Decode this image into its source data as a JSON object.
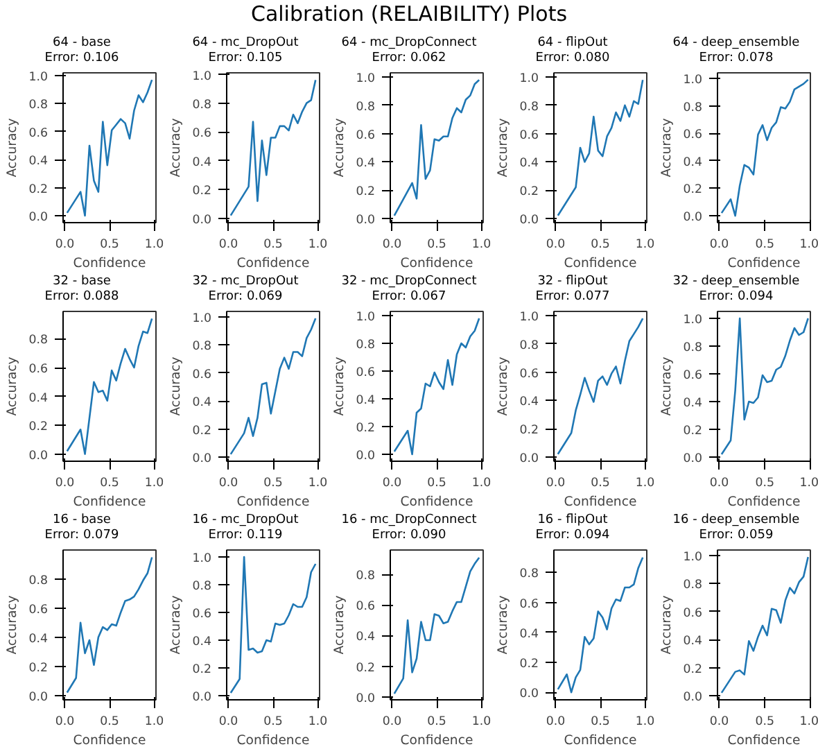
{
  "chart_data": [
    {
      "type": "other",
      "title": "Calibration (RELAIBILITY) Plots"
    },
    {
      "type": "line",
      "title": "64 - base",
      "subtitle": "Error: 0.106",
      "xlabel": "Confidence",
      "ylabel": "Accuracy",
      "xlim": [
        -0.02,
        1.02
      ],
      "ylim": [
        -0.05,
        1.02
      ],
      "xticks": [
        {
          "value": 0,
          "label": "0.0"
        },
        {
          "value": 0.5,
          "label": "0.5"
        },
        {
          "value": 1,
          "label": "1.0"
        }
      ],
      "yticks": [
        {
          "value": 0,
          "label": "0.0"
        },
        {
          "value": 0.2,
          "label": "0.2"
        },
        {
          "value": 0.4,
          "label": "0.4"
        },
        {
          "value": 0.6,
          "label": "0.6"
        },
        {
          "value": 0.8,
          "label": "0.8"
        },
        {
          "value": 1,
          "label": "1.0"
        }
      ],
      "x": [
        0.025,
        0.175,
        0.225,
        0.275,
        0.325,
        0.375,
        0.425,
        0.475,
        0.525,
        0.575,
        0.625,
        0.675,
        0.725,
        0.775,
        0.825,
        0.875,
        0.925,
        0.975
      ],
      "values": [
        0.02,
        0.17,
        0.0,
        0.5,
        0.25,
        0.17,
        0.67,
        0.36,
        0.61,
        0.65,
        0.69,
        0.66,
        0.55,
        0.75,
        0.86,
        0.81,
        0.88,
        0.97
      ],
      "color": "#1f77b4"
    },
    {
      "type": "line",
      "title": "64 - mc_DropOut",
      "subtitle": "Error: 0.105",
      "xlabel": "Confidence",
      "ylabel": "Accuracy",
      "xlim": [
        -0.02,
        1.02
      ],
      "ylim": [
        -0.03,
        1.01
      ],
      "xticks": [
        {
          "value": 0,
          "label": "0.0"
        },
        {
          "value": 0.5,
          "label": "0.5"
        },
        {
          "value": 1,
          "label": "1.0"
        }
      ],
      "yticks": [
        {
          "value": 0,
          "label": "0.0"
        },
        {
          "value": 0.2,
          "label": "0.2"
        },
        {
          "value": 0.4,
          "label": "0.4"
        },
        {
          "value": 0.6,
          "label": "0.6"
        },
        {
          "value": 0.8,
          "label": "0.8"
        },
        {
          "value": 1,
          "label": "1.0"
        }
      ],
      "x": [
        0.025,
        0.225,
        0.275,
        0.325,
        0.375,
        0.425,
        0.475,
        0.525,
        0.575,
        0.625,
        0.675,
        0.725,
        0.775,
        0.825,
        0.875,
        0.925,
        0.975
      ],
      "values": [
        0.02,
        0.22,
        0.67,
        0.12,
        0.54,
        0.3,
        0.56,
        0.56,
        0.64,
        0.64,
        0.61,
        0.72,
        0.66,
        0.74,
        0.8,
        0.82,
        0.96
      ],
      "color": "#1f77b4"
    },
    {
      "type": "line",
      "title": "64 - mc_DropConnect",
      "subtitle": "Error: 0.062",
      "xlabel": "Confidence",
      "ylabel": "Accuracy",
      "xlim": [
        -0.02,
        1.02
      ],
      "ylim": [
        -0.03,
        1.03
      ],
      "xticks": [
        {
          "value": 0,
          "label": "0.0"
        },
        {
          "value": 0.5,
          "label": "0.5"
        },
        {
          "value": 1,
          "label": "1.0"
        }
      ],
      "yticks": [
        {
          "value": 0,
          "label": "0.0"
        },
        {
          "value": 0.2,
          "label": "0.2"
        },
        {
          "value": 0.4,
          "label": "0.4"
        },
        {
          "value": 0.6,
          "label": "0.6"
        },
        {
          "value": 0.8,
          "label": "0.8"
        },
        {
          "value": 1,
          "label": "1.0"
        }
      ],
      "x": [
        0.025,
        0.225,
        0.275,
        0.325,
        0.375,
        0.425,
        0.475,
        0.525,
        0.575,
        0.625,
        0.675,
        0.725,
        0.775,
        0.825,
        0.875,
        0.925,
        0.975
      ],
      "values": [
        0.02,
        0.25,
        0.14,
        0.66,
        0.28,
        0.34,
        0.56,
        0.55,
        0.58,
        0.58,
        0.71,
        0.78,
        0.75,
        0.84,
        0.87,
        0.95,
        0.98
      ],
      "color": "#1f77b4"
    },
    {
      "type": "line",
      "title": "64 - flipOut",
      "subtitle": "Error: 0.080",
      "xlabel": "Confidence",
      "ylabel": "Accuracy",
      "xlim": [
        -0.02,
        1.02
      ],
      "ylim": [
        -0.03,
        1.03
      ],
      "xticks": [
        {
          "value": 0,
          "label": "0.0"
        },
        {
          "value": 0.5,
          "label": "0.5"
        },
        {
          "value": 1,
          "label": "1.0"
        }
      ],
      "yticks": [
        {
          "value": 0,
          "label": "0.0"
        },
        {
          "value": 0.2,
          "label": "0.2"
        },
        {
          "value": 0.4,
          "label": "0.4"
        },
        {
          "value": 0.6,
          "label": "0.6"
        },
        {
          "value": 0.8,
          "label": "0.8"
        },
        {
          "value": 1,
          "label": "1.0"
        }
      ],
      "x": [
        0.025,
        0.225,
        0.275,
        0.325,
        0.375,
        0.425,
        0.475,
        0.525,
        0.575,
        0.625,
        0.675,
        0.725,
        0.775,
        0.825,
        0.875,
        0.925,
        0.975
      ],
      "values": [
        0.02,
        0.22,
        0.5,
        0.4,
        0.46,
        0.72,
        0.48,
        0.44,
        0.58,
        0.64,
        0.75,
        0.69,
        0.8,
        0.72,
        0.83,
        0.81,
        0.98
      ],
      "color": "#1f77b4"
    },
    {
      "type": "line",
      "title": "64 - deep_ensemble",
      "subtitle": "Error: 0.078",
      "xlabel": "Confidence",
      "ylabel": "Accuracy",
      "xlim": [
        -0.02,
        1.0
      ],
      "ylim": [
        -0.05,
        1.04
      ],
      "xticks": [
        {
          "value": 0,
          "label": "0.0"
        },
        {
          "value": 0.5,
          "label": "0.5"
        },
        {
          "value": 1,
          "label": "1.0"
        }
      ],
      "yticks": [
        {
          "value": 0,
          "label": "0.0"
        },
        {
          "value": 0.2,
          "label": "0.2"
        },
        {
          "value": 0.4,
          "label": "0.4"
        },
        {
          "value": 0.6,
          "label": "0.6"
        },
        {
          "value": 0.8,
          "label": "0.8"
        },
        {
          "value": 1,
          "label": "1.0"
        }
      ],
      "x": [
        0.025,
        0.125,
        0.175,
        0.225,
        0.275,
        0.325,
        0.375,
        0.425,
        0.475,
        0.525,
        0.575,
        0.625,
        0.675,
        0.725,
        0.775,
        0.825,
        0.875,
        0.925,
        0.975
      ],
      "values": [
        0.02,
        0.12,
        0.0,
        0.22,
        0.37,
        0.35,
        0.3,
        0.59,
        0.66,
        0.55,
        0.64,
        0.68,
        0.79,
        0.78,
        0.83,
        0.92,
        0.94,
        0.96,
        0.99
      ],
      "color": "#1f77b4"
    },
    {
      "type": "line",
      "title": "32 - base",
      "subtitle": "Error: 0.088",
      "xlabel": "Confidence",
      "ylabel": "Accuracy",
      "xlim": [
        -0.02,
        1.02
      ],
      "ylim": [
        -0.05,
        0.99
      ],
      "xticks": [
        {
          "value": 0,
          "label": "0.0"
        },
        {
          "value": 0.5,
          "label": "0.5"
        },
        {
          "value": 1,
          "label": "1.0"
        }
      ],
      "yticks": [
        {
          "value": 0,
          "label": "0.0"
        },
        {
          "value": 0.2,
          "label": "0.2"
        },
        {
          "value": 0.4,
          "label": "0.4"
        },
        {
          "value": 0.6,
          "label": "0.6"
        },
        {
          "value": 0.8,
          "label": "0.8"
        }
      ],
      "x": [
        0.025,
        0.175,
        0.225,
        0.325,
        0.375,
        0.425,
        0.475,
        0.525,
        0.575,
        0.625,
        0.675,
        0.725,
        0.775,
        0.825,
        0.875,
        0.925,
        0.975
      ],
      "values": [
        0.02,
        0.17,
        0.0,
        0.5,
        0.43,
        0.44,
        0.37,
        0.58,
        0.51,
        0.63,
        0.73,
        0.66,
        0.6,
        0.75,
        0.85,
        0.84,
        0.94
      ],
      "color": "#1f77b4"
    },
    {
      "type": "line",
      "title": "32 - mc_DropOut",
      "subtitle": "Error: 0.069",
      "xlabel": "Confidence",
      "ylabel": "Accuracy",
      "xlim": [
        -0.02,
        1.02
      ],
      "ylim": [
        -0.03,
        1.04
      ],
      "xticks": [
        {
          "value": 0,
          "label": "0.0"
        },
        {
          "value": 0.5,
          "label": "0.5"
        },
        {
          "value": 1,
          "label": "1.0"
        }
      ],
      "yticks": [
        {
          "value": 0,
          "label": "0.0"
        },
        {
          "value": 0.2,
          "label": "0.2"
        },
        {
          "value": 0.4,
          "label": "0.4"
        },
        {
          "value": 0.6,
          "label": "0.6"
        },
        {
          "value": 0.8,
          "label": "0.8"
        },
        {
          "value": 1,
          "label": "1.0"
        }
      ],
      "x": [
        0.025,
        0.175,
        0.225,
        0.275,
        0.325,
        0.375,
        0.425,
        0.475,
        0.525,
        0.575,
        0.625,
        0.675,
        0.725,
        0.775,
        0.825,
        0.875,
        0.925,
        0.975
      ],
      "values": [
        0.02,
        0.17,
        0.28,
        0.15,
        0.28,
        0.52,
        0.53,
        0.31,
        0.47,
        0.63,
        0.71,
        0.63,
        0.75,
        0.75,
        0.72,
        0.85,
        0.91,
        0.99
      ],
      "color": "#1f77b4"
    },
    {
      "type": "line",
      "title": "32 - mc_DropConnect",
      "subtitle": "Error: 0.067",
      "xlabel": "Confidence",
      "ylabel": "Accuracy",
      "xlim": [
        -0.02,
        1.02
      ],
      "ylim": [
        -0.05,
        1.03
      ],
      "xticks": [
        {
          "value": 0,
          "label": "0.0"
        },
        {
          "value": 0.5,
          "label": "0.5"
        },
        {
          "value": 1,
          "label": "1.0"
        }
      ],
      "yticks": [
        {
          "value": 0,
          "label": "0.0"
        },
        {
          "value": 0.2,
          "label": "0.2"
        },
        {
          "value": 0.4,
          "label": "0.4"
        },
        {
          "value": 0.6,
          "label": "0.6"
        },
        {
          "value": 0.8,
          "label": "0.8"
        },
        {
          "value": 1,
          "label": "1.0"
        }
      ],
      "x": [
        0.025,
        0.175,
        0.225,
        0.275,
        0.325,
        0.375,
        0.425,
        0.475,
        0.525,
        0.575,
        0.625,
        0.675,
        0.725,
        0.775,
        0.825,
        0.875,
        0.925,
        0.975
      ],
      "values": [
        0.02,
        0.17,
        0.0,
        0.3,
        0.33,
        0.51,
        0.49,
        0.59,
        0.52,
        0.47,
        0.68,
        0.5,
        0.72,
        0.8,
        0.77,
        0.85,
        0.89,
        0.98
      ],
      "color": "#1f77b4"
    },
    {
      "type": "line",
      "title": "32 - flipOut",
      "subtitle": "Error: 0.077",
      "xlabel": "Confidence",
      "ylabel": "Accuracy",
      "xlim": [
        -0.02,
        1.02
      ],
      "ylim": [
        -0.03,
        1.03
      ],
      "xticks": [
        {
          "value": 0,
          "label": "0.0"
        },
        {
          "value": 0.5,
          "label": "0.5"
        },
        {
          "value": 1,
          "label": "1.0"
        }
      ],
      "yticks": [
        {
          "value": 0,
          "label": "0.0"
        },
        {
          "value": 0.2,
          "label": "0.2"
        },
        {
          "value": 0.4,
          "label": "0.4"
        },
        {
          "value": 0.6,
          "label": "0.6"
        },
        {
          "value": 0.8,
          "label": "0.8"
        },
        {
          "value": 1,
          "label": "1.0"
        }
      ],
      "x": [
        0.025,
        0.175,
        0.225,
        0.275,
        0.325,
        0.375,
        0.425,
        0.475,
        0.525,
        0.575,
        0.625,
        0.675,
        0.725,
        0.775,
        0.825,
        0.875,
        0.925,
        0.975
      ],
      "values": [
        0.02,
        0.17,
        0.33,
        0.44,
        0.56,
        0.47,
        0.39,
        0.54,
        0.57,
        0.51,
        0.59,
        0.64,
        0.52,
        0.68,
        0.82,
        0.87,
        0.92,
        0.98
      ],
      "color": "#1f77b4"
    },
    {
      "type": "line",
      "title": "32 - deep_ensemble",
      "subtitle": "Error: 0.094",
      "xlabel": "Confidence",
      "ylabel": "Accuracy",
      "xlim": [
        -0.02,
        1.0
      ],
      "ylim": [
        -0.03,
        1.05
      ],
      "xticks": [
        {
          "value": 0,
          "label": "0.0"
        },
        {
          "value": 0.5,
          "label": "0.5"
        },
        {
          "value": 1,
          "label": "1.0"
        }
      ],
      "yticks": [
        {
          "value": 0,
          "label": "0.0"
        },
        {
          "value": 0.2,
          "label": "0.2"
        },
        {
          "value": 0.4,
          "label": "0.4"
        },
        {
          "value": 0.6,
          "label": "0.6"
        },
        {
          "value": 0.8,
          "label": "0.8"
        },
        {
          "value": 1,
          "label": "1.0"
        }
      ],
      "x": [
        0.025,
        0.125,
        0.175,
        0.225,
        0.275,
        0.325,
        0.375,
        0.425,
        0.475,
        0.525,
        0.575,
        0.625,
        0.675,
        0.725,
        0.775,
        0.825,
        0.875,
        0.925,
        0.975
      ],
      "values": [
        0.02,
        0.12,
        0.48,
        1.0,
        0.27,
        0.4,
        0.39,
        0.43,
        0.59,
        0.54,
        0.55,
        0.63,
        0.65,
        0.73,
        0.84,
        0.93,
        0.88,
        0.9,
        1.0
      ],
      "color": "#1f77b4"
    },
    {
      "type": "line",
      "title": "16 - base",
      "subtitle": "Error: 0.079",
      "xlabel": "Confidence",
      "ylabel": "Accuracy",
      "xlim": [
        -0.02,
        1.02
      ],
      "ylim": [
        -0.03,
        1.0
      ],
      "xticks": [
        {
          "value": 0,
          "label": "0.0"
        },
        {
          "value": 0.5,
          "label": "0.5"
        },
        {
          "value": 1,
          "label": "1.0"
        }
      ],
      "yticks": [
        {
          "value": 0,
          "label": "0.0"
        },
        {
          "value": 0.2,
          "label": "0.2"
        },
        {
          "value": 0.4,
          "label": "0.4"
        },
        {
          "value": 0.6,
          "label": "0.6"
        },
        {
          "value": 0.8,
          "label": "0.8"
        }
      ],
      "x": [
        0.025,
        0.125,
        0.175,
        0.225,
        0.275,
        0.325,
        0.375,
        0.425,
        0.475,
        0.525,
        0.575,
        0.625,
        0.675,
        0.725,
        0.775,
        0.825,
        0.875,
        0.925,
        0.975
      ],
      "values": [
        0.02,
        0.12,
        0.5,
        0.29,
        0.38,
        0.21,
        0.4,
        0.47,
        0.45,
        0.49,
        0.48,
        0.57,
        0.65,
        0.66,
        0.68,
        0.73,
        0.79,
        0.84,
        0.95
      ],
      "color": "#1f77b4"
    },
    {
      "type": "line",
      "title": "16 - mc_DropOut",
      "subtitle": "Error: 0.119",
      "xlabel": "Confidence",
      "ylabel": "Accuracy",
      "xlim": [
        -0.02,
        1.02
      ],
      "ylim": [
        -0.03,
        1.05
      ],
      "xticks": [
        {
          "value": 0,
          "label": "0.0"
        },
        {
          "value": 0.5,
          "label": "0.5"
        },
        {
          "value": 1,
          "label": "1.0"
        }
      ],
      "yticks": [
        {
          "value": 0,
          "label": "0.0"
        },
        {
          "value": 0.2,
          "label": "0.2"
        },
        {
          "value": 0.4,
          "label": "0.4"
        },
        {
          "value": 0.6,
          "label": "0.6"
        },
        {
          "value": 0.8,
          "label": "0.8"
        },
        {
          "value": 1,
          "label": "1.0"
        }
      ],
      "x": [
        0.025,
        0.125,
        0.175,
        0.225,
        0.275,
        0.325,
        0.375,
        0.425,
        0.475,
        0.525,
        0.575,
        0.625,
        0.675,
        0.725,
        0.775,
        0.825,
        0.875,
        0.925,
        0.975
      ],
      "values": [
        0.02,
        0.12,
        1.0,
        0.33,
        0.34,
        0.31,
        0.32,
        0.4,
        0.39,
        0.52,
        0.51,
        0.52,
        0.58,
        0.66,
        0.64,
        0.64,
        0.71,
        0.89,
        0.95
      ],
      "color": "#1f77b4"
    },
    {
      "type": "line",
      "title": "16 - mc_DropConnect",
      "subtitle": "Error: 0.090",
      "xlabel": "Confidence",
      "ylabel": "Accuracy",
      "xlim": [
        -0.02,
        1.02
      ],
      "ylim": [
        -0.02,
        0.96
      ],
      "xticks": [
        {
          "value": 0,
          "label": "0.0"
        },
        {
          "value": 0.5,
          "label": "0.5"
        },
        {
          "value": 1,
          "label": "1.0"
        }
      ],
      "yticks": [
        {
          "value": 0,
          "label": "0.0"
        },
        {
          "value": 0.2,
          "label": "0.2"
        },
        {
          "value": 0.4,
          "label": "0.4"
        },
        {
          "value": 0.6,
          "label": "0.6"
        },
        {
          "value": 0.8,
          "label": "0.8"
        }
      ],
      "x": [
        0.025,
        0.125,
        0.175,
        0.225,
        0.275,
        0.325,
        0.375,
        0.425,
        0.475,
        0.525,
        0.575,
        0.625,
        0.675,
        0.725,
        0.775,
        0.825,
        0.875,
        0.925,
        0.975
      ],
      "values": [
        0.02,
        0.12,
        0.5,
        0.16,
        0.25,
        0.49,
        0.37,
        0.37,
        0.54,
        0.53,
        0.48,
        0.49,
        0.56,
        0.62,
        0.62,
        0.72,
        0.82,
        0.87,
        0.91
      ],
      "color": "#1f77b4"
    },
    {
      "type": "line",
      "title": "16 - flipOut",
      "subtitle": "Error: 0.094",
      "xlabel": "Confidence",
      "ylabel": "Accuracy",
      "xlim": [
        -0.02,
        1.02
      ],
      "ylim": [
        -0.05,
        0.95
      ],
      "xticks": [
        {
          "value": 0,
          "label": "0.0"
        },
        {
          "value": 0.5,
          "label": "0.5"
        },
        {
          "value": 1,
          "label": "1.0"
        }
      ],
      "yticks": [
        {
          "value": 0,
          "label": "0.0"
        },
        {
          "value": 0.2,
          "label": "0.2"
        },
        {
          "value": 0.4,
          "label": "0.4"
        },
        {
          "value": 0.6,
          "label": "0.6"
        },
        {
          "value": 0.8,
          "label": "0.8"
        }
      ],
      "x": [
        0.025,
        0.125,
        0.175,
        0.225,
        0.275,
        0.325,
        0.375,
        0.425,
        0.475,
        0.525,
        0.575,
        0.625,
        0.675,
        0.725,
        0.775,
        0.825,
        0.875,
        0.925,
        0.975
      ],
      "values": [
        0.02,
        0.12,
        0.0,
        0.1,
        0.15,
        0.37,
        0.32,
        0.36,
        0.54,
        0.5,
        0.42,
        0.56,
        0.62,
        0.61,
        0.7,
        0.7,
        0.72,
        0.83,
        0.9
      ],
      "color": "#1f77b4"
    },
    {
      "type": "line",
      "title": "16 - deep_ensemble",
      "subtitle": "Error: 0.059",
      "xlabel": "Confidence",
      "ylabel": "Accuracy",
      "xlim": [
        -0.02,
        1.0
      ],
      "ylim": [
        -0.03,
        1.04
      ],
      "xticks": [
        {
          "value": 0,
          "label": "0.0"
        },
        {
          "value": 0.5,
          "label": "0.5"
        },
        {
          "value": 1,
          "label": "1.0"
        }
      ],
      "yticks": [
        {
          "value": 0,
          "label": "0.0"
        },
        {
          "value": 0.2,
          "label": "0.2"
        },
        {
          "value": 0.4,
          "label": "0.4"
        },
        {
          "value": 0.6,
          "label": "0.6"
        },
        {
          "value": 0.8,
          "label": "0.8"
        },
        {
          "value": 1,
          "label": "1.0"
        }
      ],
      "x": [
        0.025,
        0.175,
        0.225,
        0.275,
        0.325,
        0.375,
        0.425,
        0.475,
        0.525,
        0.575,
        0.625,
        0.675,
        0.725,
        0.775,
        0.825,
        0.875,
        0.925,
        0.975
      ],
      "values": [
        0.02,
        0.17,
        0.18,
        0.15,
        0.39,
        0.32,
        0.42,
        0.5,
        0.43,
        0.62,
        0.61,
        0.52,
        0.68,
        0.77,
        0.73,
        0.81,
        0.85,
        0.99
      ],
      "color": "#1f77b4"
    }
  ]
}
